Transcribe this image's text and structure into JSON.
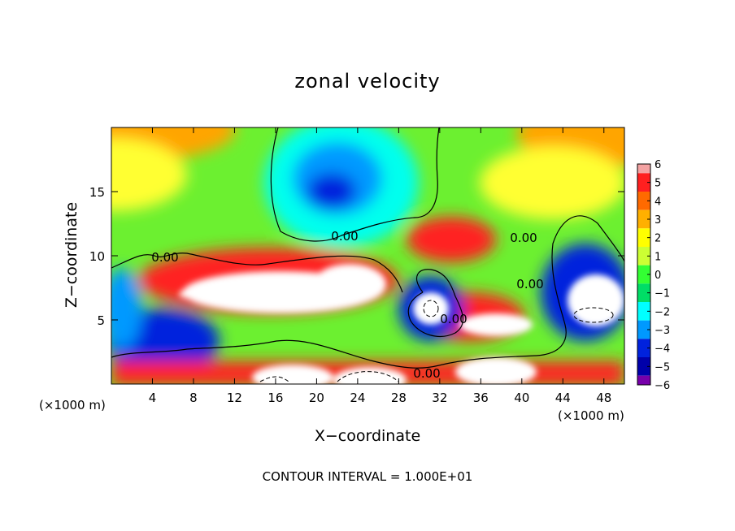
{
  "chart_data": {
    "type": "heatmap",
    "title": "zonal velocity",
    "xlabel": "X−coordinate",
    "ylabel": "Z−coordinate",
    "x_unit_label": "(×1000 m)",
    "y_unit_label": "(×1000 m)",
    "xlim": [
      0,
      50
    ],
    "ylim": [
      0,
      20
    ],
    "x_ticks": [
      4,
      8,
      12,
      16,
      20,
      24,
      28,
      32,
      36,
      40,
      44,
      48
    ],
    "y_ticks": [
      5,
      10,
      15
    ],
    "colorbar": {
      "ticks": [
        6,
        5,
        4,
        3,
        2,
        1,
        0,
        -1,
        -2,
        -3,
        -4,
        -5,
        -6
      ],
      "colors": [
        "#f4a3a3",
        "#ff2020",
        "#ff6a00",
        "#ffb000",
        "#ffff00",
        "#ccff33",
        "#33ff33",
        "#00dd66",
        "#00ffff",
        "#0099ff",
        "#0022dd",
        "#0000aa",
        "#7700aa"
      ]
    },
    "contour_labels": [
      "0.00",
      "0.00",
      "0.00",
      "0.00",
      "0.00",
      "0.00"
    ],
    "features": [
      {
        "x": 21,
        "z": 15.5,
        "value": -4
      },
      {
        "x": 3,
        "z": 19,
        "value": 3
      },
      {
        "x": 48,
        "z": 19,
        "value": 3
      },
      {
        "x": 21,
        "z": 7.5,
        "value": 6
      },
      {
        "x": 34,
        "z": 11.2,
        "value": 4
      },
      {
        "x": 30.5,
        "z": 5.8,
        "value": 6
      },
      {
        "x": 47,
        "z": 6.5,
        "value": 6
      },
      {
        "x": 20,
        "z": 0.8,
        "value": 6
      },
      {
        "x": 38,
        "z": 1.2,
        "value": 6
      },
      {
        "x": 6,
        "z": 3,
        "value": -4
      },
      {
        "x": 45,
        "z": 8.5,
        "value": -4
      }
    ]
  },
  "footer": "CONTOUR INTERVAL = 1.000E+01",
  "colors": {
    "background": "#ffffff",
    "base_field": "#6cf030"
  }
}
